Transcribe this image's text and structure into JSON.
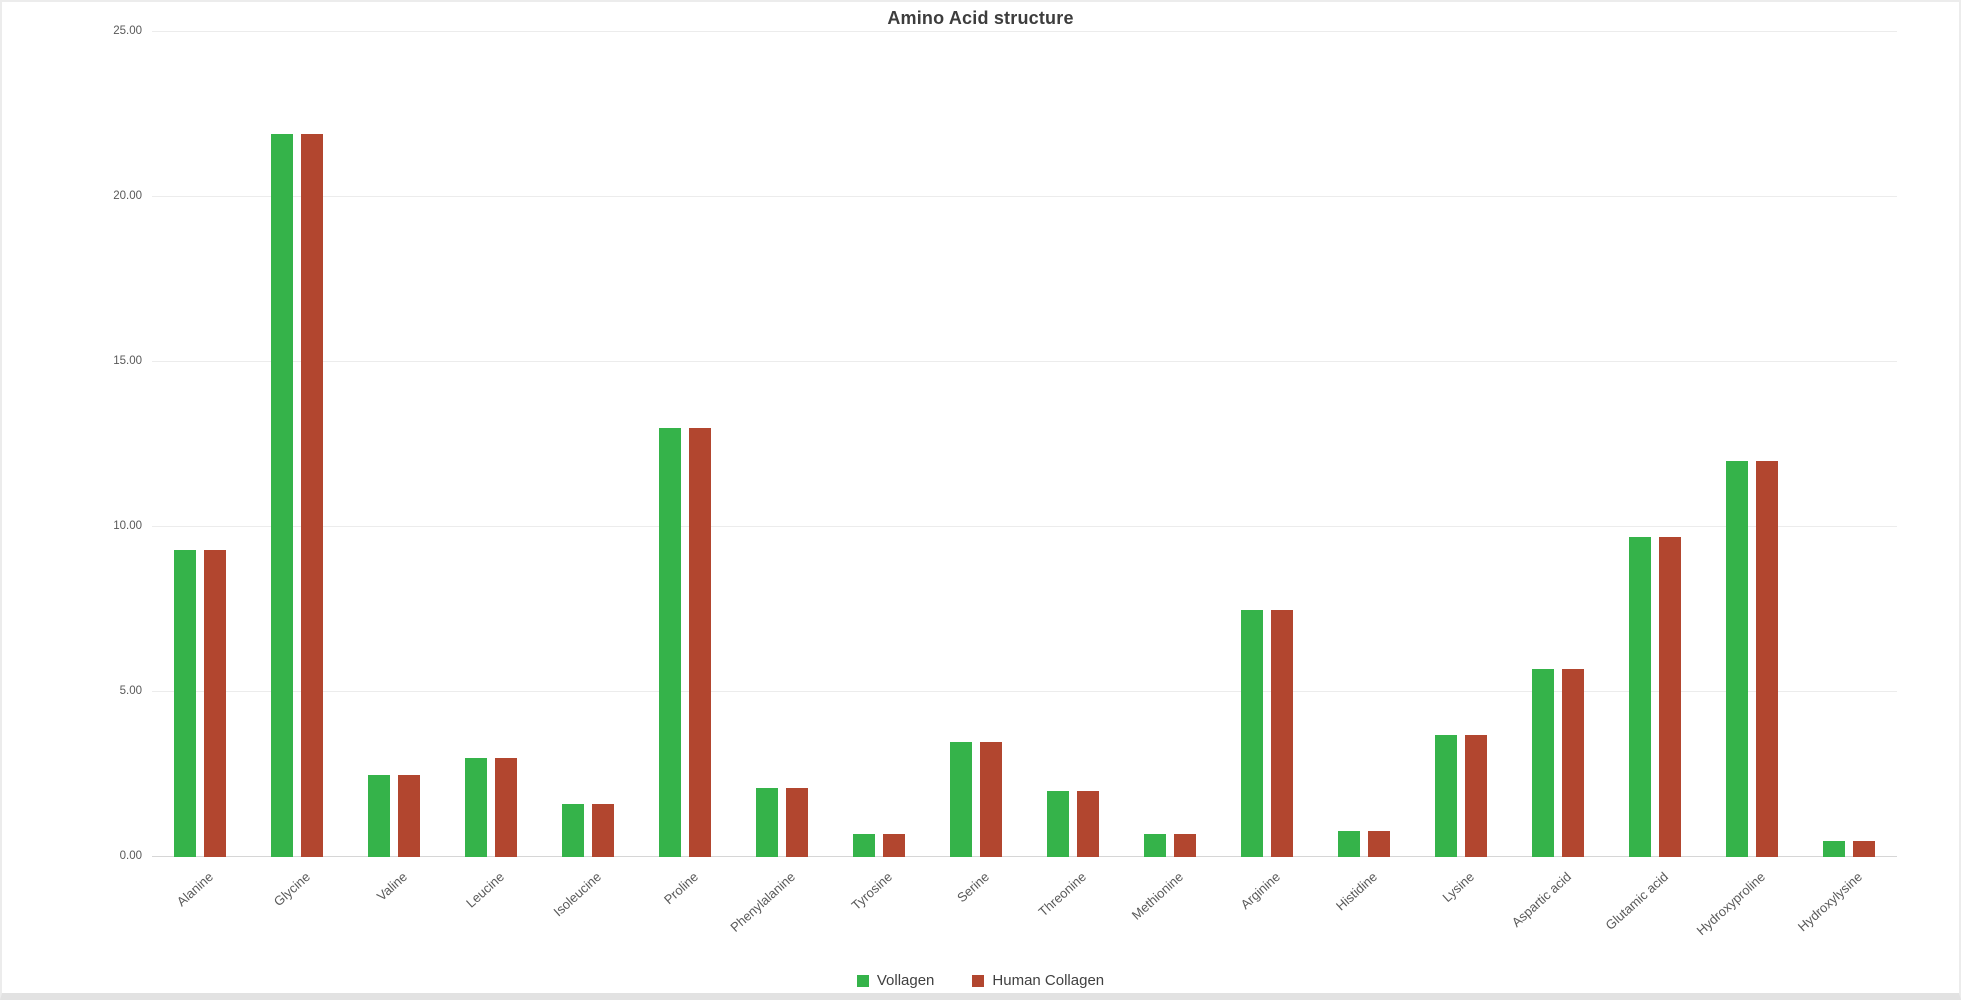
{
  "frame": {
    "background": "#ffffff",
    "border_color": "#ececec",
    "bottom_strip_color": "#e2e2e2"
  },
  "chart_data": {
    "type": "bar",
    "title": "Amino Acid structure",
    "categories": [
      "Alanine",
      "Glycine",
      "Valine",
      "Leucine",
      "Isoleucine",
      "Proline",
      "Phenylalanine",
      "Tyrosine",
      "Serine",
      "Threonine",
      "Methionine",
      "Arginine",
      "Histidine",
      "Lysine",
      "Aspartic acid",
      "Glutamic acid",
      "Hydroxyproline",
      "Hydroxylysine"
    ],
    "series": [
      {
        "name": "Vollagen",
        "color": "#35b34a",
        "values": [
          9.3,
          21.9,
          2.5,
          3.0,
          1.6,
          13.0,
          2.1,
          0.7,
          3.5,
          2.0,
          0.7,
          7.5,
          0.8,
          3.7,
          5.7,
          9.7,
          12.0,
          0.5
        ]
      },
      {
        "name": "Human Collagen",
        "color": "#b2462f",
        "values": [
          9.3,
          21.9,
          2.5,
          3.0,
          1.6,
          13.0,
          2.1,
          0.7,
          3.5,
          2.0,
          0.7,
          7.5,
          0.8,
          3.7,
          5.7,
          9.7,
          12.0,
          0.5
        ]
      }
    ],
    "xlabel": "",
    "ylabel": "",
    "ylim": [
      0,
      25
    ],
    "y_ticks": [
      {
        "value": 0,
        "label": "0.00"
      },
      {
        "value": 5,
        "label": "5.00"
      },
      {
        "value": 10,
        "label": "10.00"
      },
      {
        "value": 15,
        "label": "15.00"
      },
      {
        "value": 20,
        "label": "20.00"
      },
      {
        "value": 25,
        "label": "25.00"
      }
    ],
    "grid": true,
    "gridline_color": "#ececec",
    "axis_line_color": "#d6d6d6",
    "legend_position": "bottom"
  }
}
